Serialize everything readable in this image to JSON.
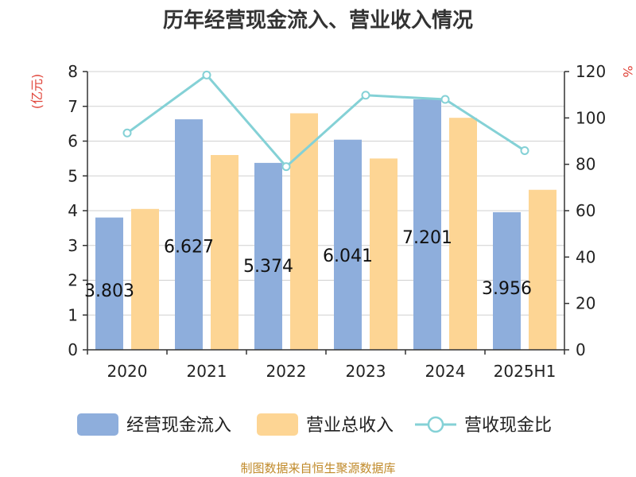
{
  "chart_data": {
    "type": "bar",
    "title": "历年经营现金流入、营业收入情况",
    "categories": [
      "2020",
      "2021",
      "2022",
      "2023",
      "2024",
      "2025H1"
    ],
    "y_left": {
      "unit": "(亿元)",
      "ylim": [
        0,
        8
      ],
      "ticks": [
        0,
        1,
        2,
        3,
        4,
        5,
        6,
        7,
        8
      ]
    },
    "y_right": {
      "unit": "%",
      "ylim": [
        0,
        120
      ],
      "ticks": [
        0,
        20,
        40,
        60,
        80,
        100,
        120
      ]
    },
    "series": [
      {
        "name": "经营现金流入",
        "type": "bar",
        "axis": "left",
        "color": "#8eaedc",
        "values": [
          3.803,
          6.627,
          5.374,
          6.041,
          7.201,
          3.956
        ],
        "labels": [
          "3.803",
          "6.627",
          "5.374",
          "6.041",
          "7.201",
          "3.956"
        ]
      },
      {
        "name": "营业总收入",
        "type": "bar",
        "axis": "left",
        "color": "#fdd594",
        "values": [
          4.05,
          5.6,
          6.8,
          5.5,
          6.67,
          4.6
        ]
      },
      {
        "name": "营收现金比",
        "type": "line",
        "axis": "right",
        "color": "#84d1d6",
        "values": [
          93.5,
          118.5,
          79.0,
          109.8,
          108.0,
          85.9
        ]
      }
    ],
    "grid": true,
    "legend_position": "bottom"
  },
  "footer": {
    "source": "制图数据来自恒生聚源数据库"
  }
}
